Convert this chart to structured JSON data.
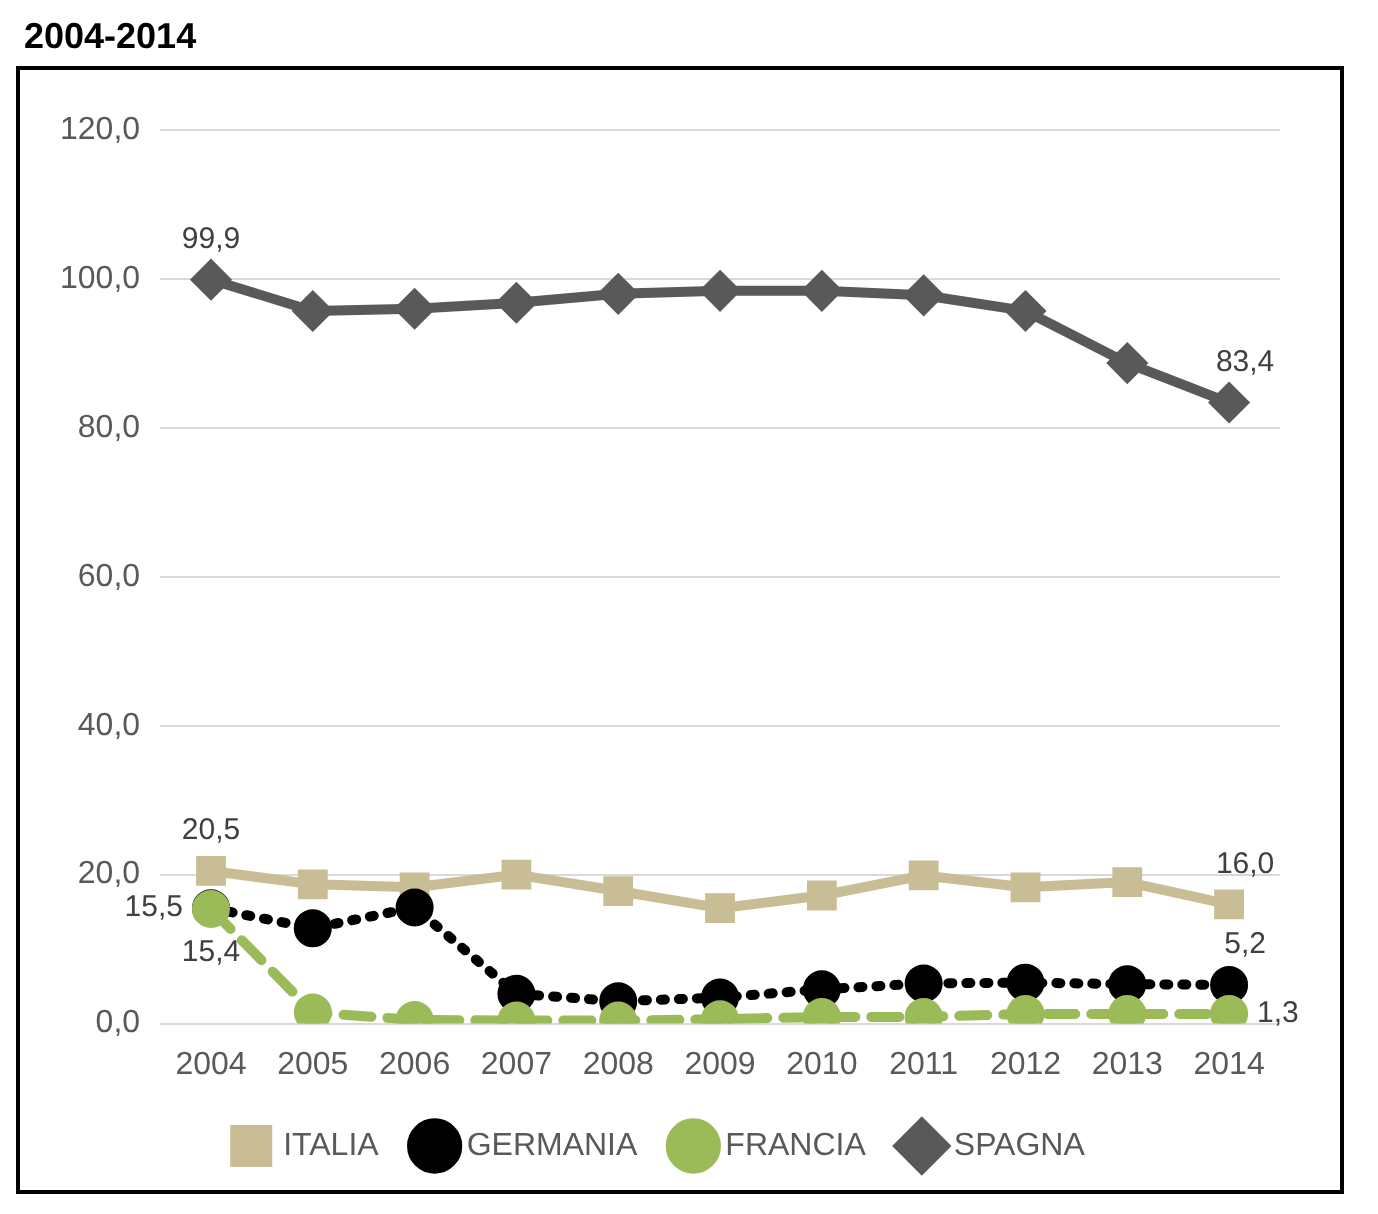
{
  "chart_data": {
    "type": "line",
    "title": "2004-2014",
    "categories": [
      "2004",
      "2005",
      "2006",
      "2007",
      "2008",
      "2009",
      "2010",
      "2011",
      "2012",
      "2013",
      "2014"
    ],
    "series": [
      {
        "name": "ITALIA",
        "color": "#c9bd95",
        "marker": "square",
        "line_style": "solid",
        "values": [
          20.5,
          18.7,
          18.3,
          20.0,
          17.8,
          15.5,
          17.2,
          19.9,
          18.3,
          19.0,
          16.0
        ],
        "value_labels": [
          "20,5",
          null,
          null,
          null,
          null,
          null,
          null,
          null,
          null,
          null,
          "16,0"
        ]
      },
      {
        "name": "GERMANIA",
        "color": "#000000",
        "marker": "circle",
        "line_style": "dotted",
        "values": [
          15.5,
          12.8,
          15.6,
          4.0,
          3.0,
          3.5,
          4.6,
          5.4,
          5.5,
          5.3,
          5.2
        ],
        "value_labels": [
          "15,5",
          null,
          null,
          null,
          null,
          null,
          null,
          null,
          null,
          null,
          "5,2"
        ]
      },
      {
        "name": "FRANCIA",
        "color": "#9bbb59",
        "marker": "circle",
        "line_style": "dashed",
        "values": [
          15.4,
          1.5,
          0.5,
          0.4,
          0.4,
          0.6,
          0.9,
          0.9,
          1.3,
          1.3,
          1.3
        ],
        "value_labels": [
          "15,4",
          null,
          null,
          null,
          null,
          null,
          null,
          null,
          null,
          null,
          "1,3"
        ]
      },
      {
        "name": "SPAGNA",
        "color": "#595959",
        "marker": "diamond",
        "line_style": "solid",
        "values": [
          99.9,
          95.7,
          96.0,
          96.8,
          98.0,
          98.4,
          98.4,
          97.8,
          95.7,
          88.7,
          83.4
        ],
        "value_labels": [
          "99,9",
          null,
          null,
          null,
          null,
          null,
          null,
          null,
          null,
          null,
          "83,4"
        ]
      }
    ],
    "ylim": [
      0,
      120
    ],
    "yticks": [
      {
        "value": 0,
        "label": "0,0"
      },
      {
        "value": 20,
        "label": "20,0"
      },
      {
        "value": 40,
        "label": "40,0"
      },
      {
        "value": 60,
        "label": "60,0"
      },
      {
        "value": 80,
        "label": "80,0"
      },
      {
        "value": 100,
        "label": "100,0"
      },
      {
        "value": 120,
        "label": "120,0"
      }
    ],
    "grid": "y",
    "legend": "bottom"
  }
}
